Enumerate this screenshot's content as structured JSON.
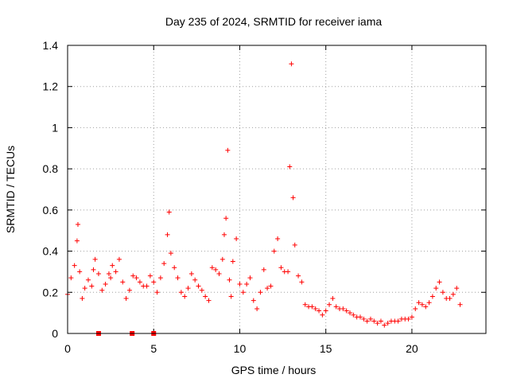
{
  "chart_data": {
    "type": "scatter",
    "title": "Day 235 of 2024, SRMTID for receiver iama",
    "xlabel": "GPS time / hours",
    "ylabel": "SRMTID / TECUs",
    "xlim": [
      0,
      24.3
    ],
    "ylim": [
      0,
      1.4
    ],
    "xticks": [
      0,
      5,
      10,
      15,
      20
    ],
    "xtick_labels": [
      "0",
      "5",
      "10",
      "15",
      "20"
    ],
    "yticks": [
      0,
      0.2,
      0.4,
      0.6,
      0.8,
      1,
      1.2,
      1.4
    ],
    "ytick_labels": [
      "0",
      "0.2",
      "0.4",
      "0.6",
      "0.8",
      "1",
      "1.2",
      "1.4"
    ],
    "grid": true,
    "marker": "plus",
    "color": "#ff0000",
    "zero_points": [
      1.8,
      3.75,
      5.0
    ],
    "series": [
      {
        "name": "SRMTID",
        "x": [
          0,
          0.2,
          0.4,
          0.55,
          0.6,
          0.7,
          0.85,
          1.0,
          1.2,
          1.4,
          1.5,
          1.6,
          1.8,
          2.0,
          2.2,
          2.4,
          2.5,
          2.6,
          2.8,
          3.0,
          3.2,
          3.4,
          3.6,
          3.8,
          4.0,
          4.2,
          4.4,
          4.6,
          4.8,
          5.0,
          5.2,
          5.4,
          5.6,
          5.8,
          5.9,
          6.0,
          6.2,
          6.4,
          6.6,
          6.8,
          7.0,
          7.2,
          7.4,
          7.6,
          7.8,
          8.0,
          8.2,
          8.4,
          8.6,
          8.8,
          9.0,
          9.1,
          9.2,
          9.3,
          9.4,
          9.5,
          9.6,
          9.8,
          10.0,
          10.2,
          10.4,
          10.6,
          10.8,
          11.0,
          11.2,
          11.4,
          11.6,
          11.8,
          12.0,
          12.2,
          12.4,
          12.6,
          12.8,
          12.9,
          13.0,
          13.1,
          13.2,
          13.4,
          13.6,
          13.8,
          14.0,
          14.2,
          14.4,
          14.6,
          14.8,
          15.0,
          15.2,
          15.4,
          15.6,
          15.8,
          16.0,
          16.2,
          16.4,
          16.6,
          16.8,
          17.0,
          17.2,
          17.4,
          17.6,
          17.8,
          18.0,
          18.2,
          18.4,
          18.6,
          18.8,
          19.0,
          19.2,
          19.4,
          19.6,
          19.8,
          20.0,
          20.2,
          20.4,
          20.6,
          20.8,
          21.0,
          21.2,
          21.4,
          21.6,
          21.8,
          22.0,
          22.2,
          22.4,
          22.6,
          22.8
        ],
        "y": [
          0.19,
          0.27,
          0.33,
          0.45,
          0.53,
          0.3,
          0.17,
          0.22,
          0.26,
          0.23,
          0.31,
          0.36,
          0.29,
          0.21,
          0.24,
          0.29,
          0.27,
          0.33,
          0.3,
          0.36,
          0.25,
          0.17,
          0.21,
          0.28,
          0.27,
          0.25,
          0.23,
          0.23,
          0.28,
          0.25,
          0.2,
          0.27,
          0.34,
          0.48,
          0.59,
          0.39,
          0.32,
          0.27,
          0.2,
          0.18,
          0.22,
          0.29,
          0.26,
          0.23,
          0.21,
          0.18,
          0.16,
          0.32,
          0.31,
          0.29,
          0.36,
          0.48,
          0.56,
          0.89,
          0.26,
          0.18,
          0.35,
          0.46,
          0.24,
          0.2,
          0.24,
          0.27,
          0.16,
          0.12,
          0.2,
          0.31,
          0.22,
          0.23,
          0.4,
          0.46,
          0.32,
          0.3,
          0.3,
          0.81,
          1.31,
          0.66,
          0.43,
          0.28,
          0.25,
          0.14,
          0.13,
          0.13,
          0.12,
          0.11,
          0.09,
          0.11,
          0.14,
          0.17,
          0.13,
          0.12,
          0.12,
          0.11,
          0.1,
          0.09,
          0.08,
          0.08,
          0.07,
          0.06,
          0.07,
          0.06,
          0.05,
          0.06,
          0.04,
          0.05,
          0.06,
          0.06,
          0.06,
          0.07,
          0.07,
          0.07,
          0.08,
          0.12,
          0.15,
          0.14,
          0.13,
          0.15,
          0.18,
          0.22,
          0.25,
          0.2,
          0.17,
          0.17,
          0.19,
          0.22,
          0.14
        ]
      }
    ]
  }
}
